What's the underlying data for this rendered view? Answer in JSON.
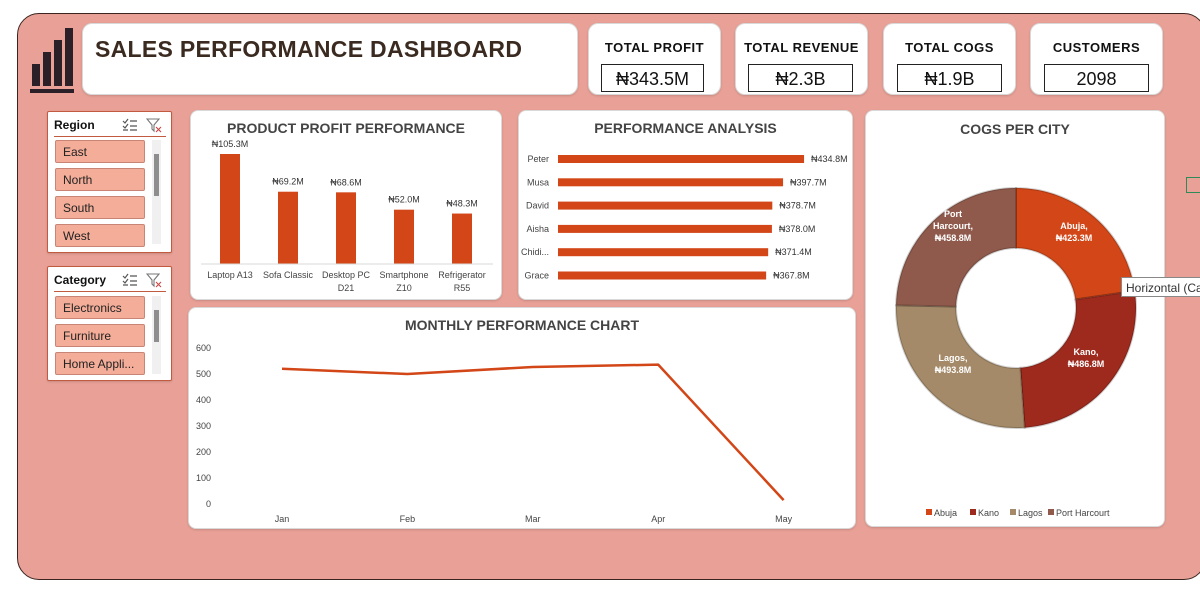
{
  "dashboard": {
    "title": "SALES PERFORMANCE DASHBOARD",
    "colors": {
      "background": "#e9a197",
      "accent": "#d24617",
      "kano": "#9e2a1e",
      "lagos": "#a48a68",
      "port_harcourt": "#8f5a4b"
    }
  },
  "kpis": {
    "total_profit": {
      "label": "TOTAL PROFIT",
      "value": "₦343.5M"
    },
    "total_revenue": {
      "label": "TOTAL REVENUE",
      "value": "₦2.3B"
    },
    "total_cogs": {
      "label": "TOTAL COGS",
      "value": "₦1.9B"
    },
    "customers": {
      "label": "CUSTOMERS",
      "value": "2098"
    }
  },
  "slicers": {
    "region": {
      "label": "Region",
      "items": [
        "East",
        "North",
        "South",
        "West"
      ]
    },
    "category": {
      "label": "Category",
      "items": [
        "Electronics",
        "Furniture",
        "Home Appli..."
      ]
    }
  },
  "tooltip": {
    "text": "Horizontal (Ca"
  },
  "chart_data": [
    {
      "type": "bar",
      "title": "PRODUCT PROFIT PERFORMANCE",
      "categories": [
        "Laptop A13",
        "Sofa Classic",
        "Desktop PC D21",
        "Smartphone Z10",
        "Refrigerator R55"
      ],
      "category_lines": [
        [
          "Laptop A13"
        ],
        [
          "Sofa Classic"
        ],
        [
          "Desktop PC",
          "D21"
        ],
        [
          "Smartphone",
          "Z10"
        ],
        [
          "Refrigerator",
          "R55"
        ]
      ],
      "values": [
        105.3,
        69.2,
        68.6,
        52.0,
        48.3
      ],
      "labels": [
        "₦105.3M",
        "₦69.2M",
        "₦68.6M",
        "₦52.0M",
        "₦48.3M"
      ],
      "ylim": [
        0,
        120
      ]
    },
    {
      "type": "bar",
      "orientation": "horizontal",
      "title": "PERFORMANCE ANALYSIS",
      "categories": [
        "Peter",
        "Musa",
        "David",
        "Aisha",
        "Chidi...",
        "Grace"
      ],
      "values": [
        434.8,
        397.7,
        378.7,
        378.0,
        371.4,
        367.8
      ],
      "labels": [
        "₦434.8M",
        "₦397.7M",
        "₦378.7M",
        "₦378.0M",
        "₦371.4M",
        "₦367.8M"
      ],
      "xlim": [
        0,
        440
      ]
    },
    {
      "type": "line",
      "title": "MONTHLY PERFORMANCE CHART",
      "categories": [
        "Jan",
        "Feb",
        "Mar",
        "Apr",
        "May"
      ],
      "values": [
        520,
        500,
        527,
        536,
        15
      ],
      "ylim": [
        0,
        600
      ],
      "yticks": [
        0,
        100,
        200,
        300,
        400,
        500,
        600
      ]
    },
    {
      "type": "pie",
      "donut": true,
      "title": "COGS PER CITY",
      "categories": [
        "Abuja",
        "Kano",
        "Lagos",
        "Port Harcourt"
      ],
      "values": [
        423.3,
        486.8,
        493.8,
        458.8
      ],
      "labels": [
        [
          "Abuja,",
          "₦423.3M"
        ],
        [
          "Kano,",
          "₦486.8M"
        ],
        [
          "Lagos,",
          "₦493.8M"
        ],
        [
          "Port",
          "Harcourt,",
          "₦458.8M"
        ]
      ],
      "colors": [
        "#d24617",
        "#9e2a1e",
        "#a48a68",
        "#8f5a4b"
      ],
      "legend": "bottom"
    }
  ]
}
